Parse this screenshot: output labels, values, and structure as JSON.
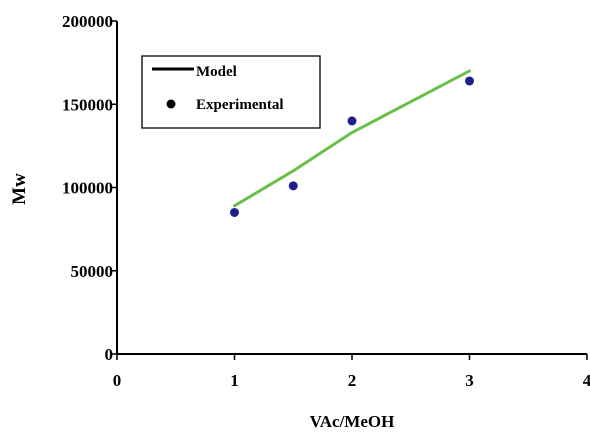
{
  "chart_data": {
    "type": "line",
    "title": "",
    "xlabel": "VAc/MeOH",
    "ylabel": "Mw",
    "xlim": [
      0,
      4
    ],
    "ylim": [
      0,
      200000
    ],
    "x_ticks": [
      0,
      1,
      2,
      3,
      4
    ],
    "y_ticks": [
      0,
      50000,
      100000,
      150000,
      200000
    ],
    "x_tick_labels": [
      "0",
      "1",
      "2",
      "3",
      "4"
    ],
    "y_tick_labels": [
      "0",
      "50000",
      "100000",
      "150000",
      "200000"
    ],
    "grid": false,
    "legend_position": "top-left",
    "series": [
      {
        "name": "Model",
        "kind": "line",
        "color": "#6abf4b",
        "legend_color": "#000000",
        "x": [
          1.0,
          1.5,
          2.0,
          3.0
        ],
        "y": [
          89000,
          110000,
          133000,
          170000
        ]
      },
      {
        "name": "Experimental",
        "kind": "scatter",
        "color": "#1c1f8c",
        "legend_color": "#000000",
        "x": [
          1.0,
          1.5,
          2.0,
          3.0
        ],
        "y": [
          85000,
          101000,
          140000,
          164000
        ]
      }
    ]
  }
}
